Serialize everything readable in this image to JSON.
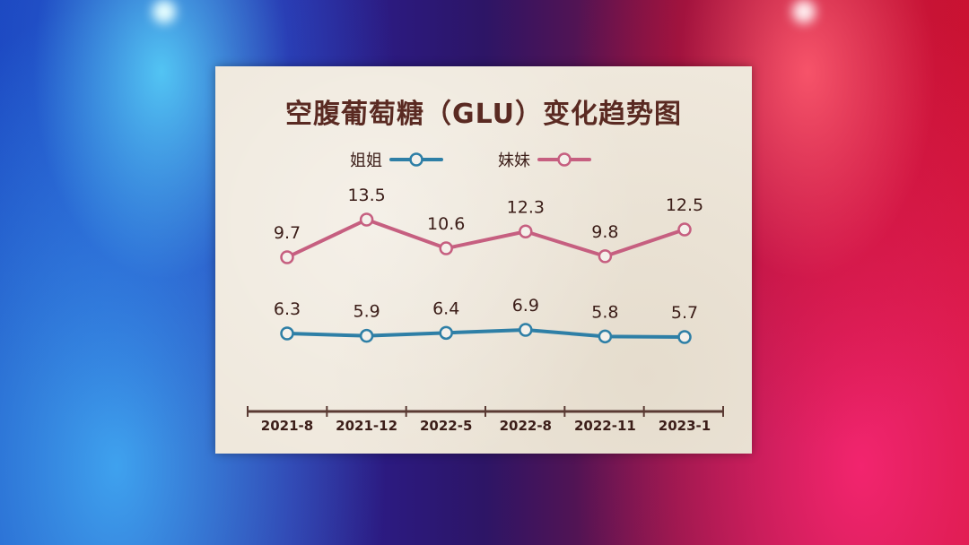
{
  "colors": {
    "sister_elder": "#2e7fa6",
    "sister_younger": "#c65f80",
    "title": "#5a2a22",
    "text": "#3b1d18",
    "axis": "#5a3a33"
  },
  "chart_data": {
    "type": "line",
    "title": "空腹葡萄糖（GLU）变化趋势图",
    "categories": [
      "2021-8",
      "2021-12",
      "2022-5",
      "2022-8",
      "2022-11",
      "2023-1"
    ],
    "series": [
      {
        "name": "姐姐",
        "values": [
          6.3,
          5.9,
          6.4,
          6.9,
          5.8,
          5.7
        ]
      },
      {
        "name": "妹妹",
        "values": [
          9.7,
          13.5,
          10.6,
          12.3,
          9.8,
          12.5
        ]
      }
    ],
    "value_labels": {
      "姐姐": [
        "6.3",
        "5.9",
        "6.4",
        "6.9",
        "5.8",
        "5.7"
      ],
      "妹妹": [
        "9.7",
        "13.5",
        "10.6",
        "12.3",
        "9.8",
        "12.5"
      ]
    },
    "legend_position": "top-left",
    "grid": false
  }
}
